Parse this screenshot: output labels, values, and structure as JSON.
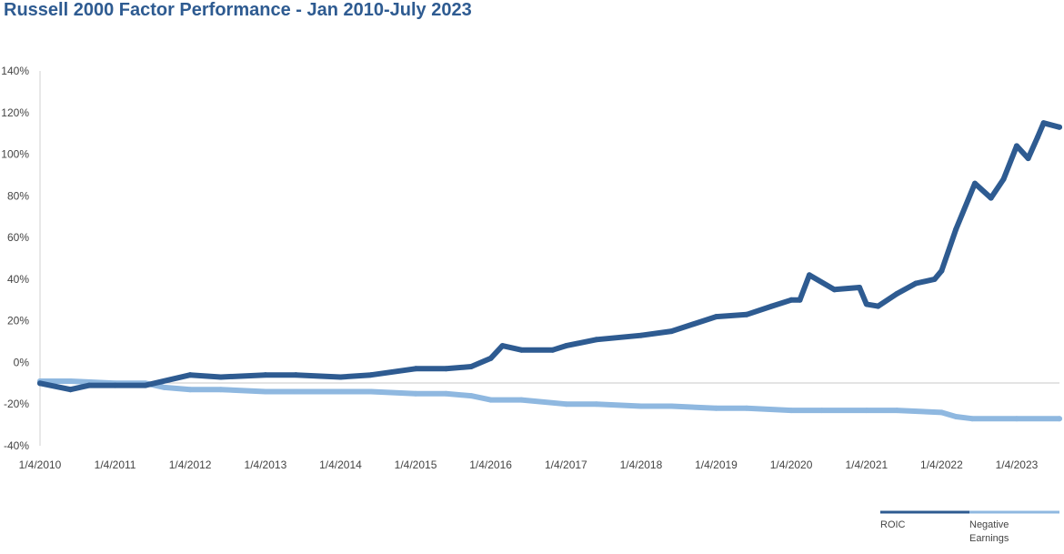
{
  "chart_data": {
    "type": "line",
    "title": "Russell 2000 Factor Performance - Jan 2010-July 2023",
    "xlabel": "",
    "ylabel": "",
    "ylim": [
      -40,
      140
    ],
    "y_ticks": [
      "-40%",
      "-20%",
      "0%",
      "20%",
      "40%",
      "60%",
      "80%",
      "100%",
      "120%",
      "140%"
    ],
    "x_ticks": [
      "1/4/2010",
      "1/4/2011",
      "1/4/2012",
      "1/4/2013",
      "1/4/2014",
      "1/4/2015",
      "1/4/2016",
      "1/4/2017",
      "1/4/2018",
      "1/4/2019",
      "1/4/2020",
      "1/4/2021",
      "1/4/2022",
      "1/4/2023"
    ],
    "grid": false,
    "legend_position": "bottom-right",
    "series": [
      {
        "name": "ROIC",
        "color": "#2e5b91",
        "x": [
          "2010-01-04",
          "2010-06-01",
          "2010-09-01",
          "2011-01-04",
          "2011-06-01",
          "2012-01-04",
          "2012-06-01",
          "2013-01-04",
          "2013-06-01",
          "2014-01-04",
          "2014-06-01",
          "2015-01-04",
          "2015-06-01",
          "2015-10-01",
          "2016-01-04",
          "2016-03-01",
          "2016-06-01",
          "2016-11-01",
          "2017-01-04",
          "2017-06-01",
          "2018-01-04",
          "2018-06-01",
          "2019-01-04",
          "2019-06-01",
          "2019-10-01",
          "2020-01-04",
          "2020-02-15",
          "2020-04-01",
          "2020-08-01",
          "2020-12-01",
          "2021-01-04",
          "2021-03-01",
          "2021-06-01",
          "2021-09-01",
          "2021-12-01",
          "2022-01-04",
          "2022-03-15",
          "2022-06-15",
          "2022-09-01",
          "2022-11-01",
          "2023-01-04",
          "2023-03-01",
          "2023-04-15",
          "2023-05-15",
          "2023-07-31"
        ],
        "values": [
          -10,
          -13,
          -11,
          -11,
          -11,
          -6,
          -7,
          -6,
          -6,
          -7,
          -6,
          -3,
          -3,
          -2,
          2,
          8,
          6,
          6,
          8,
          11,
          13,
          15,
          22,
          23,
          27,
          30,
          30,
          42,
          35,
          36,
          28,
          27,
          33,
          38,
          40,
          44,
          64,
          86,
          79,
          88,
          104,
          98,
          108,
          115,
          113
        ]
      },
      {
        "name": "Negative Earnings",
        "color": "#8fb8e0",
        "x": [
          "2010-01-04",
          "2010-06-01",
          "2011-01-04",
          "2011-06-01",
          "2011-09-01",
          "2012-01-04",
          "2012-06-01",
          "2013-01-04",
          "2013-06-01",
          "2014-01-04",
          "2014-06-01",
          "2015-01-04",
          "2015-06-01",
          "2015-10-01",
          "2016-01-04",
          "2016-06-01",
          "2017-01-04",
          "2017-06-01",
          "2018-01-04",
          "2018-06-01",
          "2019-01-04",
          "2019-06-01",
          "2020-01-04",
          "2020-06-01",
          "2021-01-04",
          "2021-06-01",
          "2022-01-04",
          "2022-03-15",
          "2022-06-01",
          "2023-01-04",
          "2023-07-31"
        ],
        "values": [
          -9,
          -9,
          -10,
          -10,
          -12,
          -13,
          -13,
          -14,
          -14,
          -14,
          -14,
          -15,
          -15,
          -16,
          -18,
          -18,
          -20,
          -20,
          -21,
          -21,
          -22,
          -22,
          -23,
          -23,
          -23,
          -23,
          -24,
          -26,
          -27,
          -27,
          -27
        ]
      }
    ]
  }
}
